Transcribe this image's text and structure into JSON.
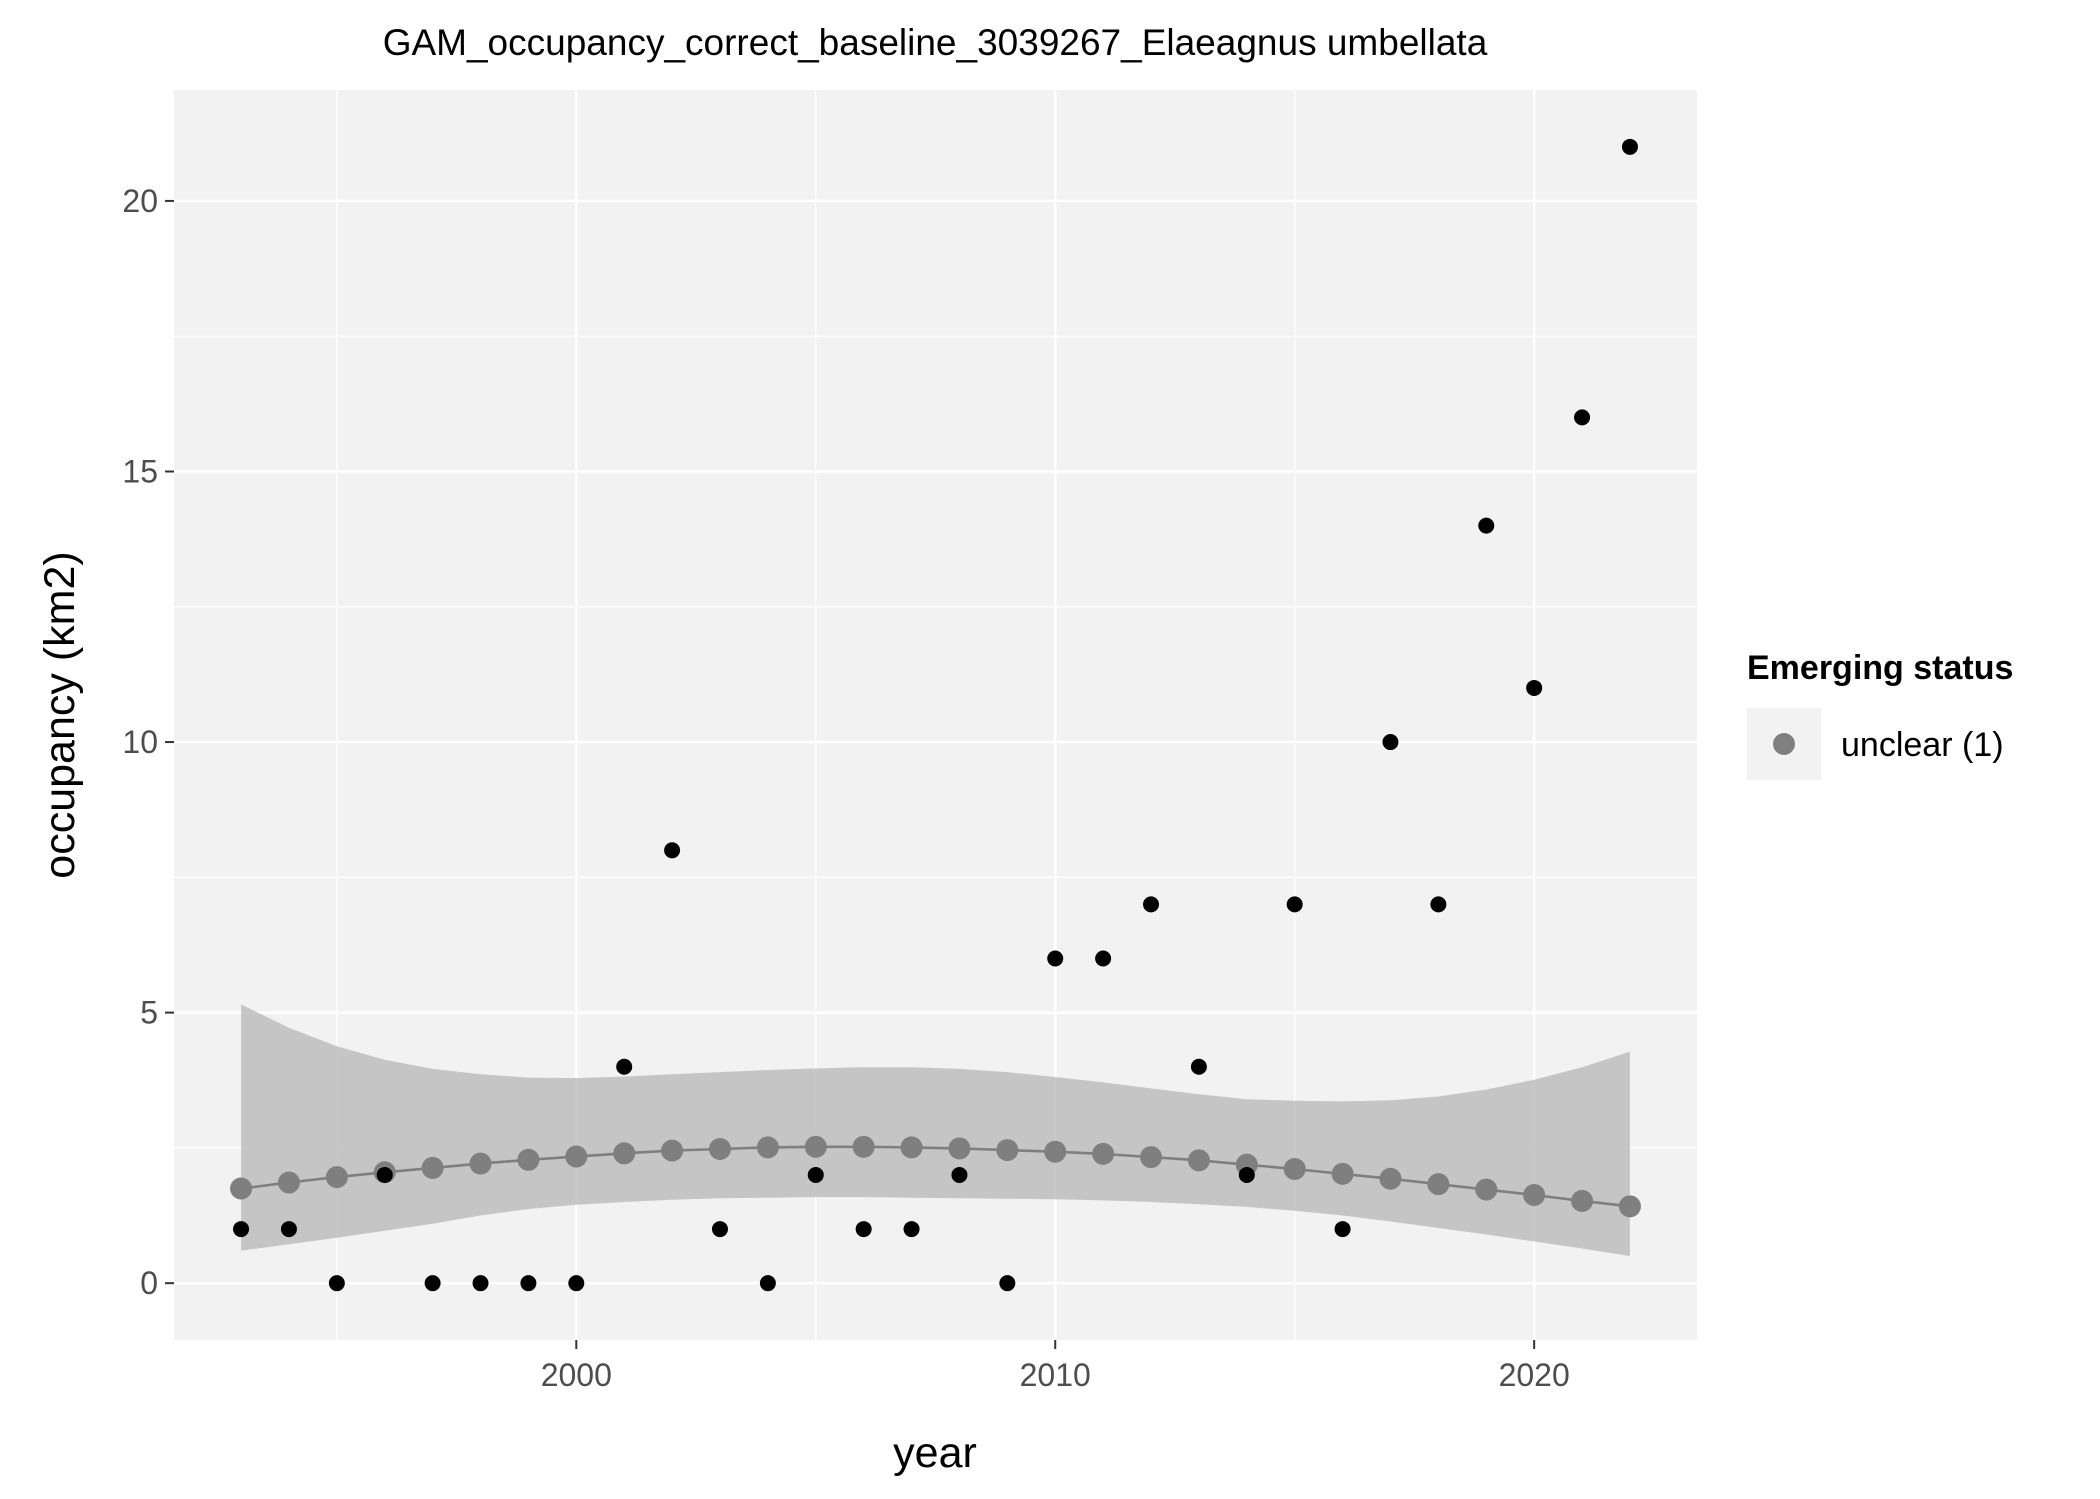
{
  "chart_data": {
    "type": "scatter",
    "title": "GAM_occupancy_correct_baseline_3039267_Elaeagnus umbellata",
    "xlabel": "year",
    "ylabel": "occupancy (km2)",
    "xlim": [
      1991.6,
      2023.4
    ],
    "ylim": [
      -1.05,
      22.05
    ],
    "x_ticks": [
      2000,
      2010,
      2020
    ],
    "y_ticks": [
      0,
      5,
      10,
      15,
      20
    ],
    "grid": true,
    "legend": {
      "title": "Emerging status",
      "position": "right",
      "entries": [
        {
          "label": "unclear (1)",
          "color": "#7f7f7f"
        }
      ]
    },
    "colors": {
      "observed": "#000000",
      "fit": "#7f7f7f",
      "ribbon": "#bdbdbd",
      "panel": "#f2f2f2",
      "grid": "#ffffff"
    },
    "series": [
      {
        "name": "observed",
        "kind": "points",
        "x": [
          1993,
          1994,
          1995,
          1996,
          1997,
          1998,
          1999,
          2000,
          2001,
          2002,
          2003,
          2004,
          2005,
          2006,
          2007,
          2008,
          2009,
          2010,
          2011,
          2012,
          2013,
          2014,
          2015,
          2016,
          2017,
          2018,
          2019,
          2020,
          2021,
          2022
        ],
        "y": [
          1,
          1,
          0,
          2,
          0,
          0,
          0,
          0,
          4,
          8,
          1,
          0,
          2,
          1,
          1,
          2,
          0,
          6,
          6,
          7,
          4,
          2,
          7,
          1,
          10,
          7,
          14,
          11,
          16,
          21
        ]
      },
      {
        "name": "unclear (1)",
        "kind": "gam-fit",
        "x": [
          1993,
          1994,
          1995,
          1996,
          1997,
          1998,
          1999,
          2000,
          2001,
          2002,
          2003,
          2004,
          2005,
          2006,
          2007,
          2008,
          2009,
          2010,
          2011,
          2012,
          2013,
          2014,
          2015,
          2016,
          2017,
          2018,
          2019,
          2020,
          2021,
          2022
        ],
        "y": [
          1.75,
          1.86,
          1.96,
          2.05,
          2.13,
          2.21,
          2.28,
          2.34,
          2.4,
          2.45,
          2.48,
          2.51,
          2.52,
          2.52,
          2.51,
          2.49,
          2.46,
          2.43,
          2.39,
          2.33,
          2.27,
          2.19,
          2.11,
          2.02,
          1.93,
          1.83,
          1.73,
          1.63,
          1.52,
          1.42
        ],
        "lower": [
          0.6,
          0.72,
          0.84,
          0.97,
          1.1,
          1.25,
          1.37,
          1.45,
          1.5,
          1.54,
          1.57,
          1.58,
          1.59,
          1.59,
          1.58,
          1.57,
          1.56,
          1.55,
          1.53,
          1.5,
          1.46,
          1.41,
          1.34,
          1.25,
          1.14,
          1.02,
          0.9,
          0.77,
          0.64,
          0.5
        ],
        "upper": [
          5.15,
          4.72,
          4.38,
          4.13,
          3.96,
          3.86,
          3.8,
          3.79,
          3.82,
          3.86,
          3.9,
          3.94,
          3.97,
          3.99,
          3.99,
          3.96,
          3.9,
          3.81,
          3.71,
          3.6,
          3.49,
          3.4,
          3.37,
          3.36,
          3.38,
          3.45,
          3.58,
          3.76,
          3.99,
          4.28
        ]
      }
    ]
  }
}
